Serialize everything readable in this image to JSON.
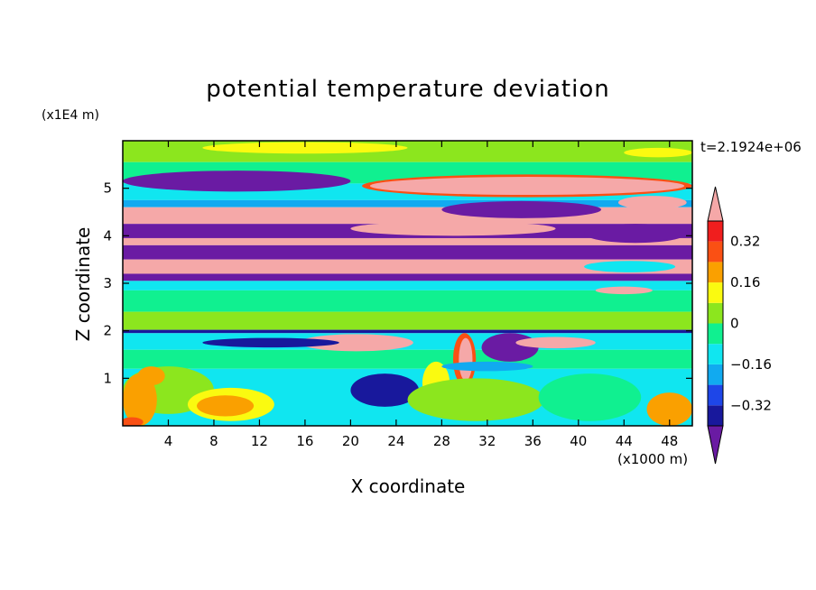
{
  "chart_data": {
    "type": "heatmap",
    "title": "potential temperature deviation",
    "xlabel": "X coordinate",
    "ylabel": "Z coordinate",
    "x_unit_label": "(x1000 m)",
    "y_unit_label": "(x1E4 m)",
    "time_label": "t=2.1924e+06",
    "xlim": [
      0,
      50
    ],
    "ylim": [
      0,
      6
    ],
    "x_ticks": [
      4,
      8,
      12,
      16,
      20,
      24,
      28,
      32,
      36,
      40,
      44,
      48
    ],
    "x_tick_labels": [
      "4",
      "8",
      "12",
      "16",
      "20",
      "24",
      "28",
      "32",
      "36",
      "40",
      "44",
      "48"
    ],
    "y_ticks": [
      1,
      2,
      3,
      4,
      5
    ],
    "y_tick_labels": [
      "1",
      "2",
      "3",
      "4",
      "5"
    ],
    "colorbar": {
      "levels": [
        -0.4,
        -0.32,
        -0.24,
        -0.16,
        -0.08,
        0,
        0.08,
        0.16,
        0.24,
        0.32,
        0.4
      ],
      "colors": [
        "#6a1ba3",
        "#18189c",
        "#1e46e8",
        "#11aaf0",
        "#10e6f0",
        "#10f090",
        "#8ce61e",
        "#fafa10",
        "#faa000",
        "#fa5014",
        "#f01e1e",
        "#f5a8a8"
      ],
      "tick_values": [
        0.32,
        0.16,
        0,
        -0.16,
        -0.32
      ],
      "tick_labels": [
        "0.32",
        "0.16",
        "0",
        "−0.16",
        "−0.32"
      ],
      "under_color": "#6a1ba3",
      "over_color": "#f5a8a8"
    },
    "bands": [
      {
        "z0": 5.55,
        "z1": 6.0,
        "color": "#8ce61e"
      },
      {
        "z0": 5.1,
        "z1": 5.55,
        "color": "#10f090"
      },
      {
        "z0": 4.75,
        "z1": 5.1,
        "color": "#10e6f0"
      },
      {
        "z0": 4.6,
        "z1": 4.75,
        "color": "#11aaf0"
      },
      {
        "z0": 4.25,
        "z1": 4.6,
        "color": "#f5a8a8"
      },
      {
        "z0": 3.95,
        "z1": 4.25,
        "color": "#6a1ba3"
      },
      {
        "z0": 3.8,
        "z1": 3.95,
        "color": "#f5a8a8"
      },
      {
        "z0": 3.5,
        "z1": 3.8,
        "color": "#6a1ba3"
      },
      {
        "z0": 3.2,
        "z1": 3.5,
        "color": "#f5a8a8"
      },
      {
        "z0": 3.05,
        "z1": 3.2,
        "color": "#6a1ba3"
      },
      {
        "z0": 2.85,
        "z1": 3.05,
        "color": "#10e6f0"
      },
      {
        "z0": 2.4,
        "z1": 2.85,
        "color": "#10f090"
      },
      {
        "z0": 2.02,
        "z1": 2.4,
        "color": "#8ce61e"
      },
      {
        "z0": 1.95,
        "z1": 2.02,
        "color": "#18189c"
      },
      {
        "z0": 1.6,
        "z1": 1.95,
        "color": "#10e6f0"
      },
      {
        "z0": 1.2,
        "z1": 1.6,
        "color": "#10f090"
      },
      {
        "z0": 0.0,
        "z1": 1.2,
        "color": "#10e6f0"
      }
    ],
    "features": [
      {
        "x": 16.0,
        "z": 5.85,
        "rx": 9.0,
        "rz": 0.12,
        "color": "#fafa10"
      },
      {
        "x": 47.0,
        "z": 5.75,
        "rx": 3.0,
        "rz": 0.1,
        "color": "#fafa10"
      },
      {
        "x": 10.0,
        "z": 5.15,
        "rx": 10.0,
        "rz": 0.22,
        "color": "#6a1ba3"
      },
      {
        "x": 35.5,
        "z": 5.05,
        "rx": 14.5,
        "rz": 0.24,
        "color": "#fa5014"
      },
      {
        "x": 35.5,
        "z": 5.05,
        "rx": 13.8,
        "rz": 0.19,
        "color": "#f5a8a8"
      },
      {
        "x": 12.0,
        "z": 4.45,
        "rx": 9.0,
        "rz": 0.14,
        "color": "#f5a8a8"
      },
      {
        "x": 35.0,
        "z": 4.55,
        "rx": 7.0,
        "rz": 0.18,
        "color": "#6a1ba3"
      },
      {
        "x": 46.5,
        "z": 4.7,
        "rx": 3.0,
        "rz": 0.14,
        "color": "#f5a8a8"
      },
      {
        "x": 29.0,
        "z": 4.15,
        "rx": 9.0,
        "rz": 0.15,
        "color": "#f5a8a8"
      },
      {
        "x": 45.0,
        "z": 4.05,
        "rx": 4.5,
        "rz": 0.2,
        "color": "#6a1ba3"
      },
      {
        "x": 44.5,
        "z": 3.35,
        "rx": 4.0,
        "rz": 0.12,
        "color": "#10e6f0"
      },
      {
        "x": 44.0,
        "z": 2.85,
        "rx": 2.5,
        "rz": 0.08,
        "color": "#f5a8a8"
      },
      {
        "x": 20.5,
        "z": 1.75,
        "rx": 5.0,
        "rz": 0.18,
        "color": "#f5a8a8"
      },
      {
        "x": 13.0,
        "z": 1.75,
        "rx": 6.0,
        "rz": 0.1,
        "color": "#18189c"
      },
      {
        "x": 23.0,
        "z": 0.75,
        "rx": 3.0,
        "rz": 0.35,
        "color": "#18189c"
      },
      {
        "x": 30.0,
        "z": 1.4,
        "rx": 1.0,
        "rz": 0.55,
        "color": "#fa5014"
      },
      {
        "x": 30.1,
        "z": 1.4,
        "rx": 0.6,
        "rz": 0.45,
        "color": "#f5a8a8"
      },
      {
        "x": 34.0,
        "z": 1.65,
        "rx": 2.5,
        "rz": 0.3,
        "color": "#6a1ba3"
      },
      {
        "x": 38.0,
        "z": 1.75,
        "rx": 3.5,
        "rz": 0.12,
        "color": "#f5a8a8"
      },
      {
        "x": 27.5,
        "z": 0.9,
        "rx": 1.2,
        "rz": 0.45,
        "color": "#fafa10"
      },
      {
        "x": 31.0,
        "z": 0.55,
        "rx": 6.0,
        "rz": 0.45,
        "color": "#8ce61e"
      },
      {
        "x": 41.0,
        "z": 0.6,
        "rx": 4.5,
        "rz": 0.5,
        "color": "#10f090"
      },
      {
        "x": 4.0,
        "z": 0.75,
        "rx": 4.0,
        "rz": 0.5,
        "color": "#8ce61e"
      },
      {
        "x": 9.5,
        "z": 0.45,
        "rx": 3.8,
        "rz": 0.35,
        "color": "#fafa10"
      },
      {
        "x": 9.0,
        "z": 0.42,
        "rx": 2.5,
        "rz": 0.22,
        "color": "#faa000"
      },
      {
        "x": 1.5,
        "z": 0.55,
        "rx": 1.5,
        "rz": 0.55,
        "color": "#faa000"
      },
      {
        "x": 0.8,
        "z": 0.08,
        "rx": 1.0,
        "rz": 0.1,
        "color": "#fa5014"
      },
      {
        "x": 48.0,
        "z": 0.35,
        "rx": 2.0,
        "rz": 0.35,
        "color": "#faa000"
      },
      {
        "x": 2.5,
        "z": 1.05,
        "rx": 1.2,
        "rz": 0.2,
        "color": "#faa000"
      },
      {
        "x": 32.0,
        "z": 1.25,
        "rx": 4.0,
        "rz": 0.1,
        "color": "#11aaf0"
      }
    ]
  }
}
